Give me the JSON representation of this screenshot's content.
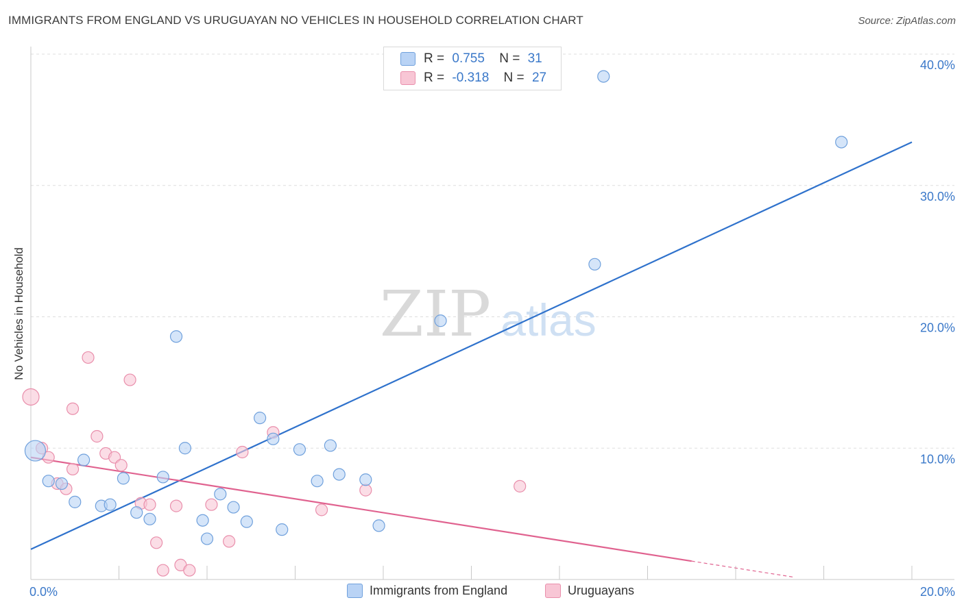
{
  "header": {
    "title": "IMMIGRANTS FROM ENGLAND VS URUGUAYAN NO VEHICLES IN HOUSEHOLD CORRELATION CHART",
    "source": "Source: ZipAtlas.com"
  },
  "watermark": {
    "zip": "ZIP",
    "atlas": "atlas"
  },
  "legend": {
    "series1": {
      "r_label": "R =",
      "r_value": "0.755",
      "n_label": "N =",
      "n_value": "31"
    },
    "series2": {
      "r_label": "R =",
      "r_value": "-0.318",
      "n_label": "N =",
      "n_value": "27"
    }
  },
  "colors": {
    "blue_fill": "#b9d3f5",
    "blue_stroke": "#6fa0dc",
    "blue_line": "#2f72cc",
    "pink_fill": "#f8c6d5",
    "pink_stroke": "#e98eab",
    "pink_line": "#e0628f",
    "tick_label": "#3a78c9",
    "grid": "#dedede"
  },
  "chart_data": {
    "type": "scatter",
    "title": "IMMIGRANTS FROM ENGLAND VS URUGUAYAN NO VEHICLES IN HOUSEHOLD CORRELATION CHART",
    "ylabel": "No Vehicles in Household",
    "xlim": [
      0,
      20
    ],
    "ylim": [
      0,
      40
    ],
    "grid": true,
    "x_tick_labels": [
      {
        "x": 0,
        "label": "0.0%"
      },
      {
        "x": 20,
        "label": "20.0%"
      }
    ],
    "y_tick_labels": [
      {
        "y": 10,
        "label": "10.0%"
      },
      {
        "y": 20,
        "label": "20.0%"
      },
      {
        "y": 30,
        "label": "30.0%"
      },
      {
        "y": 40,
        "label": "40.0%"
      }
    ],
    "series": [
      {
        "name": "Immigrants from England",
        "color": "#b9d3f5",
        "points": [
          [
            0.1,
            9.8
          ],
          [
            0.4,
            7.5
          ],
          [
            0.7,
            7.3
          ],
          [
            1.0,
            5.9
          ],
          [
            1.2,
            9.1
          ],
          [
            1.6,
            5.6
          ],
          [
            1.8,
            5.7
          ],
          [
            2.1,
            7.7
          ],
          [
            2.4,
            5.1
          ],
          [
            2.7,
            4.6
          ],
          [
            3.0,
            7.8
          ],
          [
            3.3,
            18.5
          ],
          [
            3.5,
            10.0
          ],
          [
            3.9,
            4.5
          ],
          [
            4.0,
            3.1
          ],
          [
            4.3,
            6.5
          ],
          [
            4.6,
            5.5
          ],
          [
            4.9,
            4.4
          ],
          [
            5.2,
            12.3
          ],
          [
            5.5,
            10.7
          ],
          [
            5.7,
            3.8
          ],
          [
            6.1,
            9.9
          ],
          [
            6.5,
            7.5
          ],
          [
            6.8,
            10.2
          ],
          [
            7.0,
            8.0
          ],
          [
            7.6,
            7.6
          ],
          [
            7.9,
            4.1
          ],
          [
            9.3,
            19.7
          ],
          [
            12.8,
            24.0
          ],
          [
            13.0,
            38.3
          ],
          [
            18.4,
            33.3
          ]
        ]
      },
      {
        "name": "Uruguayans",
        "color": "#f8c6d5",
        "points": [
          [
            0.0,
            13.9
          ],
          [
            0.25,
            10.0
          ],
          [
            0.4,
            9.3
          ],
          [
            0.6,
            7.3
          ],
          [
            0.8,
            6.9
          ],
          [
            0.95,
            8.4
          ],
          [
            0.95,
            13.0
          ],
          [
            1.3,
            16.9
          ],
          [
            1.5,
            10.9
          ],
          [
            1.7,
            9.6
          ],
          [
            1.9,
            9.3
          ],
          [
            2.05,
            8.7
          ],
          [
            2.25,
            15.2
          ],
          [
            2.5,
            5.8
          ],
          [
            2.7,
            5.7
          ],
          [
            2.85,
            2.8
          ],
          [
            3.0,
            0.7
          ],
          [
            3.3,
            5.6
          ],
          [
            3.4,
            1.1
          ],
          [
            3.6,
            0.7
          ],
          [
            4.1,
            5.7
          ],
          [
            4.5,
            2.9
          ],
          [
            4.8,
            9.7
          ],
          [
            5.5,
            11.2
          ],
          [
            6.6,
            5.3
          ],
          [
            7.6,
            6.8
          ],
          [
            11.1,
            7.1
          ]
        ]
      }
    ],
    "trendlines": [
      {
        "series": "Immigrants from England",
        "x": [
          0,
          20
        ],
        "y": [
          2.3,
          33.3
        ]
      },
      {
        "series": "Uruguayans",
        "x": [
          0,
          15.0
        ],
        "y": [
          9.3,
          1.4
        ],
        "dashed_extension_to_x": 17.3
      }
    ]
  },
  "bottom_legend": {
    "item1": "Immigrants from England",
    "item2": "Uruguayans"
  }
}
